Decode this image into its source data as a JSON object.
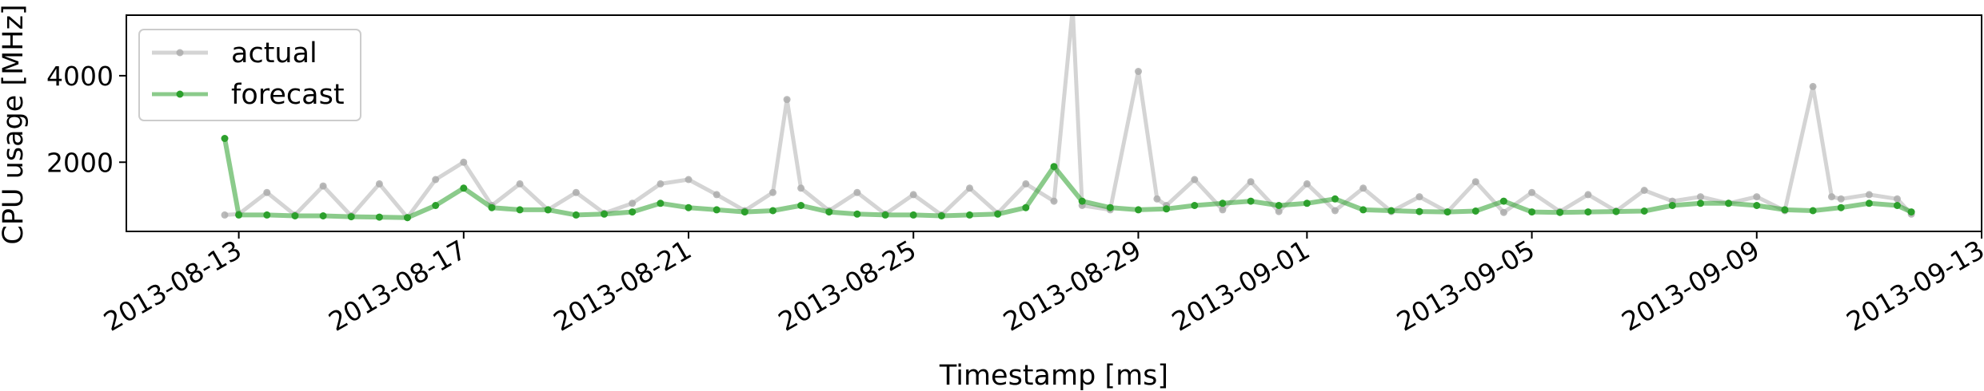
{
  "chart_data": {
    "type": "line",
    "title": "",
    "xlabel": "Timestamp [ms]",
    "ylabel": "CPU usage [MHz]",
    "xlim": [
      "2013-08-11T00:00",
      "2013-09-13T00:00"
    ],
    "ylim": [
      400,
      5400
    ],
    "grid": false,
    "legend": {
      "position": "top-left",
      "entries": [
        "actual",
        "forecast"
      ]
    },
    "x_ticks": [
      "2013-08-13",
      "2013-08-17",
      "2013-08-21",
      "2013-08-25",
      "2013-08-29",
      "2013-09-01",
      "2013-09-05",
      "2013-09-09",
      "2013-09-13"
    ],
    "y_ticks": [
      2000,
      4000
    ],
    "series": [
      {
        "name": "actual",
        "color": "#a9a9a9",
        "x": [
          "2013-08-12T18:00",
          "2013-08-13T00:00",
          "2013-08-13T12:00",
          "2013-08-14T00:00",
          "2013-08-14T12:00",
          "2013-08-15T00:00",
          "2013-08-15T12:00",
          "2013-08-16T00:00",
          "2013-08-16T12:00",
          "2013-08-17T00:00",
          "2013-08-17T12:00",
          "2013-08-18T00:00",
          "2013-08-18T12:00",
          "2013-08-19T00:00",
          "2013-08-19T12:00",
          "2013-08-20T00:00",
          "2013-08-20T12:00",
          "2013-08-21T00:00",
          "2013-08-21T12:00",
          "2013-08-22T00:00",
          "2013-08-22T12:00",
          "2013-08-22T18:00",
          "2013-08-23T00:00",
          "2013-08-23T12:00",
          "2013-08-24T00:00",
          "2013-08-24T12:00",
          "2013-08-25T00:00",
          "2013-08-25T12:00",
          "2013-08-26T00:00",
          "2013-08-26T12:00",
          "2013-08-27T00:00",
          "2013-08-27T12:00",
          "2013-08-27T20:00",
          "2013-08-28T00:00",
          "2013-08-28T12:00",
          "2013-08-29T00:00",
          "2013-08-29T08:00",
          "2013-08-29T12:00",
          "2013-08-30T00:00",
          "2013-08-30T12:00",
          "2013-08-31T00:00",
          "2013-08-31T12:00",
          "2013-09-01T00:00",
          "2013-09-01T12:00",
          "2013-09-02T00:00",
          "2013-09-02T12:00",
          "2013-09-03T00:00",
          "2013-09-03T12:00",
          "2013-09-04T00:00",
          "2013-09-04T12:00",
          "2013-09-05T00:00",
          "2013-09-05T12:00",
          "2013-09-06T00:00",
          "2013-09-06T12:00",
          "2013-09-07T00:00",
          "2013-09-07T12:00",
          "2013-09-08T00:00",
          "2013-09-08T12:00",
          "2013-09-09T00:00",
          "2013-09-09T12:00",
          "2013-09-10T00:00",
          "2013-09-10T08:00",
          "2013-09-10T12:00",
          "2013-09-11T00:00",
          "2013-09-11T12:00",
          "2013-09-11T18:00"
        ],
        "values": [
          780,
          800,
          1300,
          780,
          1450,
          760,
          1500,
          720,
          1600,
          2000,
          1000,
          1500,
          900,
          1300,
          820,
          1050,
          1500,
          1600,
          1250,
          880,
          1300,
          3450,
          1400,
          880,
          1300,
          800,
          1250,
          780,
          1400,
          820,
          1500,
          1100,
          5550,
          1000,
          900,
          4100,
          1150,
          1000,
          1600,
          900,
          1550,
          860,
          1500,
          880,
          1400,
          860,
          1200,
          850,
          1550,
          840,
          1300,
          860,
          1250,
          870,
          1350,
          1100,
          1200,
          1050,
          1200,
          880,
          3750,
          1200,
          1150,
          1250,
          1150,
          800
        ]
      },
      {
        "name": "forecast",
        "color": "#2ca02c",
        "x": [
          "2013-08-12T18:00",
          "2013-08-13T00:00",
          "2013-08-13T12:00",
          "2013-08-14T00:00",
          "2013-08-14T12:00",
          "2013-08-15T00:00",
          "2013-08-15T12:00",
          "2013-08-16T00:00",
          "2013-08-16T12:00",
          "2013-08-17T00:00",
          "2013-08-17T12:00",
          "2013-08-18T00:00",
          "2013-08-18T12:00",
          "2013-08-19T00:00",
          "2013-08-19T12:00",
          "2013-08-20T00:00",
          "2013-08-20T12:00",
          "2013-08-21T00:00",
          "2013-08-21T12:00",
          "2013-08-22T00:00",
          "2013-08-22T12:00",
          "2013-08-23T00:00",
          "2013-08-23T12:00",
          "2013-08-24T00:00",
          "2013-08-24T12:00",
          "2013-08-25T00:00",
          "2013-08-25T12:00",
          "2013-08-26T00:00",
          "2013-08-26T12:00",
          "2013-08-27T00:00",
          "2013-08-27T12:00",
          "2013-08-28T00:00",
          "2013-08-28T12:00",
          "2013-08-29T00:00",
          "2013-08-29T12:00",
          "2013-08-30T00:00",
          "2013-08-30T12:00",
          "2013-08-31T00:00",
          "2013-08-31T12:00",
          "2013-09-01T00:00",
          "2013-09-01T12:00",
          "2013-09-02T00:00",
          "2013-09-02T12:00",
          "2013-09-03T00:00",
          "2013-09-03T12:00",
          "2013-09-04T00:00",
          "2013-09-04T12:00",
          "2013-09-05T00:00",
          "2013-09-05T12:00",
          "2013-09-06T00:00",
          "2013-09-06T12:00",
          "2013-09-07T00:00",
          "2013-09-07T12:00",
          "2013-09-08T00:00",
          "2013-09-08T12:00",
          "2013-09-09T00:00",
          "2013-09-09T12:00",
          "2013-09-10T00:00",
          "2013-09-10T12:00",
          "2013-09-11T00:00",
          "2013-09-11T12:00",
          "2013-09-11T18:00"
        ],
        "values": [
          2550,
          780,
          780,
          760,
          760,
          740,
          730,
          720,
          1000,
          1400,
          950,
          900,
          900,
          780,
          800,
          850,
          1050,
          950,
          900,
          850,
          880,
          1000,
          850,
          800,
          780,
          780,
          760,
          780,
          800,
          950,
          1900,
          1100,
          950,
          900,
          920,
          1000,
          1050,
          1100,
          1000,
          1050,
          1150,
          900,
          880,
          860,
          850,
          870,
          1100,
          850,
          840,
          850,
          860,
          870,
          1000,
          1050,
          1050,
          1000,
          900,
          880,
          950,
          1050,
          1000,
          850
        ]
      }
    ]
  }
}
